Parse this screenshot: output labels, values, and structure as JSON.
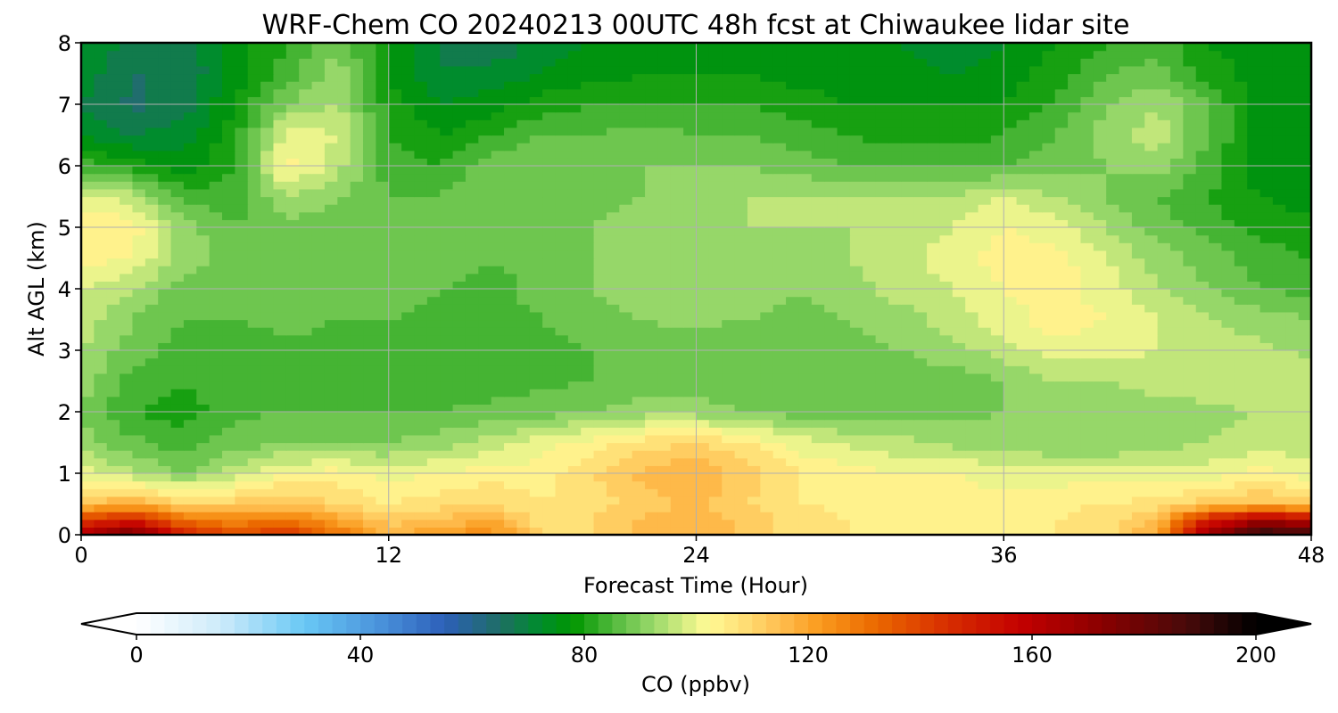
{
  "chart_data": {
    "type": "heatmap",
    "title": "WRF-Chem CO  20240213 00UTC 48h fcst at Chiwaukee lidar site",
    "xlabel": "Forecast Time (Hour)",
    "ylabel": "Alt AGL (km)",
    "xlim": [
      0,
      48
    ],
    "ylim": [
      0,
      8
    ],
    "xticks": [
      0,
      12,
      24,
      36,
      48
    ],
    "yticks": [
      0,
      1,
      2,
      3,
      4,
      5,
      6,
      7,
      8
    ],
    "grid": true,
    "colorbar": {
      "label": "CO  (ppbv)",
      "min": 0,
      "max": 200,
      "ticks": [
        0,
        40,
        80,
        120,
        160,
        200
      ],
      "extend": "both",
      "orientation": "horizontal"
    },
    "x_hours": [
      0,
      2,
      4,
      6,
      8,
      10,
      12,
      14,
      16,
      18,
      20,
      22,
      24,
      26,
      28,
      30,
      32,
      34,
      36,
      38,
      40,
      42,
      44,
      46,
      48
    ],
    "y_km": [
      0,
      0.25,
      0.5,
      1,
      1.5,
      2,
      2.5,
      3,
      3.5,
      4,
      4.5,
      5,
      5.5,
      6,
      6.5,
      7,
      7.5,
      8
    ],
    "values_ppbv": [
      [
        165,
        180,
        150,
        140,
        145,
        130,
        118,
        122,
        125,
        110,
        110,
        115,
        118,
        112,
        108,
        106,
        104,
        104,
        104,
        106,
        108,
        120,
        170,
        195,
        190
      ],
      [
        140,
        150,
        130,
        125,
        128,
        120,
        112,
        115,
        118,
        108,
        110,
        115,
        118,
        112,
        108,
        106,
        104,
        104,
        104,
        106,
        108,
        115,
        150,
        165,
        160
      ],
      [
        115,
        118,
        112,
        112,
        115,
        110,
        106,
        108,
        110,
        106,
        108,
        112,
        115,
        110,
        106,
        105,
        104,
        104,
        104,
        105,
        106,
        108,
        112,
        115,
        112
      ],
      [
        100,
        95,
        90,
        96,
        102,
        104,
        100,
        102,
        104,
        104,
        110,
        115,
        118,
        112,
        106,
        104,
        102,
        102,
        100,
        100,
        100,
        100,
        100,
        104,
        100
      ],
      [
        92,
        87,
        84,
        88,
        90,
        90,
        90,
        92,
        96,
        100,
        104,
        108,
        110,
        106,
        100,
        97,
        95,
        93,
        92,
        90,
        90,
        92,
        94,
        96,
        95
      ],
      [
        90,
        82,
        80,
        85,
        86,
        86,
        86,
        86,
        87,
        88,
        90,
        92,
        92,
        90,
        88,
        88,
        89,
        89,
        90,
        90,
        90,
        92,
        93,
        94,
        95
      ],
      [
        92,
        84,
        82,
        84,
        85,
        85,
        85,
        84,
        84,
        85,
        86,
        88,
        88,
        86,
        86,
        86,
        88,
        88,
        90,
        94,
        94,
        96,
        96,
        98,
        96
      ],
      [
        94,
        88,
        84,
        84,
        85,
        85,
        85,
        84,
        83,
        84,
        86,
        88,
        88,
        86,
        86,
        88,
        90,
        92,
        96,
        100,
        100,
        98,
        96,
        95,
        93
      ],
      [
        96,
        90,
        86,
        86,
        87,
        86,
        86,
        85,
        84,
        86,
        88,
        90,
        91,
        90,
        88,
        90,
        92,
        96,
        100,
        104,
        102,
        98,
        94,
        92,
        90
      ],
      [
        98,
        94,
        88,
        87,
        88,
        88,
        88,
        86,
        84,
        88,
        90,
        92,
        93,
        92,
        90,
        92,
        96,
        98,
        102,
        104,
        100,
        94,
        90,
        86,
        84
      ],
      [
        104,
        102,
        92,
        88,
        90,
        90,
        90,
        88,
        86,
        88,
        90,
        92,
        94,
        92,
        92,
        94,
        97,
        100,
        104,
        104,
        98,
        92,
        88,
        84,
        82
      ],
      [
        106,
        104,
        92,
        86,
        88,
        88,
        88,
        88,
        88,
        88,
        90,
        92,
        94,
        94,
        94,
        94,
        96,
        98,
        102,
        100,
        94,
        88,
        84,
        80,
        80
      ],
      [
        100,
        96,
        84,
        84,
        94,
        90,
        86,
        86,
        90,
        88,
        88,
        90,
        92,
        94,
        94,
        94,
        94,
        94,
        98,
        94,
        90,
        86,
        82,
        78,
        76
      ],
      [
        84,
        80,
        76,
        82,
        104,
        96,
        84,
        82,
        88,
        90,
        88,
        90,
        90,
        90,
        88,
        86,
        86,
        86,
        86,
        88,
        90,
        92,
        84,
        76,
        76
      ],
      [
        74,
        70,
        72,
        80,
        100,
        98,
        82,
        78,
        82,
        86,
        86,
        88,
        86,
        86,
        84,
        82,
        80,
        80,
        82,
        86,
        92,
        96,
        86,
        76,
        75
      ],
      [
        70,
        65,
        68,
        78,
        90,
        95,
        80,
        74,
        76,
        80,
        82,
        82,
        82,
        82,
        80,
        78,
        78,
        78,
        78,
        82,
        90,
        94,
        86,
        76,
        74
      ],
      [
        72,
        66,
        66,
        76,
        84,
        92,
        78,
        70,
        72,
        74,
        76,
        78,
        78,
        78,
        76,
        76,
        76,
        74,
        76,
        80,
        86,
        88,
        80,
        76,
        74
      ],
      [
        74,
        68,
        68,
        76,
        82,
        90,
        78,
        70,
        66,
        72,
        74,
        76,
        76,
        76,
        74,
        74,
        74,
        70,
        74,
        78,
        82,
        84,
        78,
        76,
        74
      ]
    ]
  }
}
